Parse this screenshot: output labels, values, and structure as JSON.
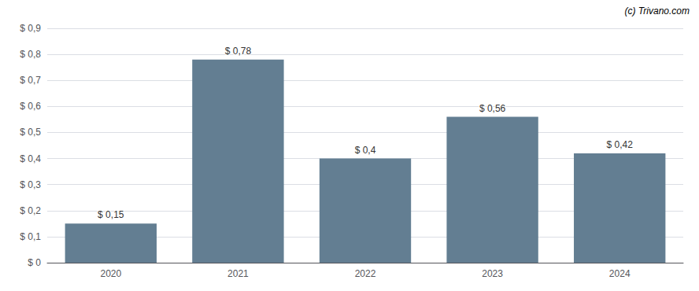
{
  "chart_data": {
    "type": "bar",
    "categories": [
      "2020",
      "2021",
      "2022",
      "2023",
      "2024"
    ],
    "values": [
      0.15,
      0.78,
      0.4,
      0.56,
      0.42
    ],
    "value_labels": [
      "$ 0,15",
      "$ 0,78",
      "$ 0,4",
      "$ 0,56",
      "$ 0,42"
    ],
    "data_labels": true,
    "color": "#637e92",
    "ylim": [
      0,
      0.9
    ],
    "yticks": [
      {
        "value": 0,
        "label": "$ 0"
      },
      {
        "value": 0.1,
        "label": "$ 0,1"
      },
      {
        "value": 0.2,
        "label": "$ 0,2"
      },
      {
        "value": 0.3,
        "label": "$ 0,3"
      },
      {
        "value": 0.4,
        "label": "$ 0,4"
      },
      {
        "value": 0.5,
        "label": "$ 0,5"
      },
      {
        "value": 0.6,
        "label": "$ 0,6"
      },
      {
        "value": 0.7,
        "label": "$ 0,7"
      },
      {
        "value": 0.8,
        "label": "$ 0,8"
      },
      {
        "value": 0.9,
        "label": "$ 0,9"
      }
    ],
    "grid": true,
    "annotation": "(c) Trivano.com"
  }
}
